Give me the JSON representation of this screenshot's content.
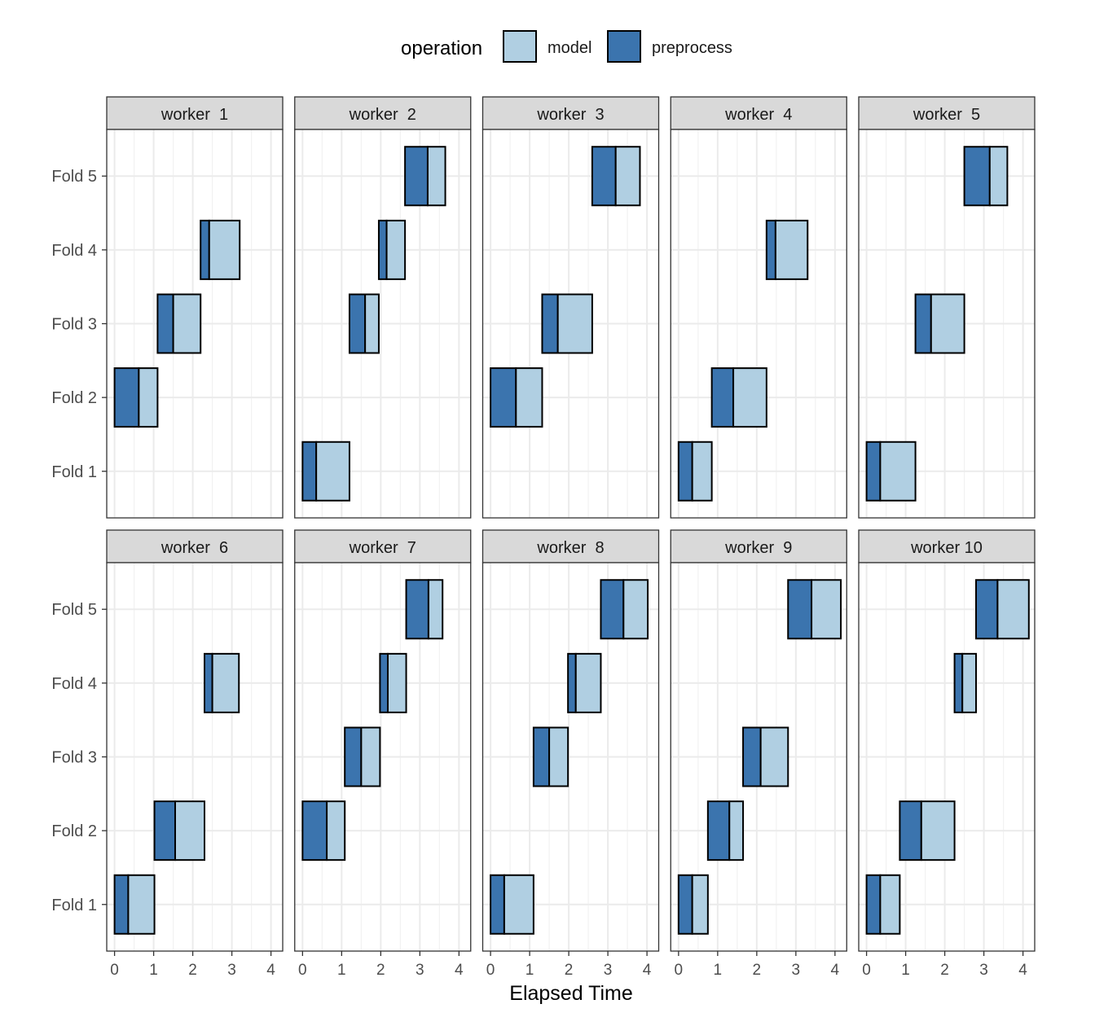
{
  "chart_data": {
    "type": "bar",
    "subtype": "faceted-gantt",
    "xlabel": "Elapsed Time",
    "xlim": [
      -0.2,
      4.3
    ],
    "x_ticks": [
      "0",
      "1",
      "2",
      "3",
      "4"
    ],
    "y_categories": [
      "Fold 1",
      "Fold 2",
      "Fold 3",
      "Fold 4",
      "Fold 5"
    ],
    "legend": {
      "title": "operation",
      "position": "top",
      "entries": [
        {
          "key": "model",
          "label": "model",
          "color": "#b0cfe2"
        },
        {
          "key": "preprocess",
          "label": "preprocess",
          "color": "#3b74ae"
        }
      ]
    },
    "grid": true,
    "facets": [
      {
        "label": "worker  1",
        "tasks": [
          {
            "fold": "Fold 2",
            "start": 0.0,
            "preprocess_end": 0.62,
            "end": 1.1
          },
          {
            "fold": "Fold 3",
            "start": 1.1,
            "preprocess_end": 1.5,
            "end": 2.2
          },
          {
            "fold": "Fold 4",
            "start": 2.2,
            "preprocess_end": 2.42,
            "end": 3.2
          }
        ]
      },
      {
        "label": "worker  2",
        "tasks": [
          {
            "fold": "Fold 1",
            "start": 0.0,
            "preprocess_end": 0.35,
            "end": 1.2
          },
          {
            "fold": "Fold 3",
            "start": 1.2,
            "preprocess_end": 1.6,
            "end": 1.95
          },
          {
            "fold": "Fold 4",
            "start": 1.95,
            "preprocess_end": 2.15,
            "end": 2.62
          },
          {
            "fold": "Fold 5",
            "start": 2.62,
            "preprocess_end": 3.2,
            "end": 3.65
          }
        ]
      },
      {
        "label": "worker  3",
        "tasks": [
          {
            "fold": "Fold 2",
            "start": 0.0,
            "preprocess_end": 0.65,
            "end": 1.32
          },
          {
            "fold": "Fold 3",
            "start": 1.32,
            "preprocess_end": 1.72,
            "end": 2.6
          },
          {
            "fold": "Fold 5",
            "start": 2.6,
            "preprocess_end": 3.2,
            "end": 3.82
          }
        ]
      },
      {
        "label": "worker  4",
        "tasks": [
          {
            "fold": "Fold 1",
            "start": 0.0,
            "preprocess_end": 0.35,
            "end": 0.85
          },
          {
            "fold": "Fold 2",
            "start": 0.85,
            "preprocess_end": 1.4,
            "end": 2.25
          },
          {
            "fold": "Fold 4",
            "start": 2.25,
            "preprocess_end": 2.48,
            "end": 3.3
          }
        ]
      },
      {
        "label": "worker  5",
        "tasks": [
          {
            "fold": "Fold 1",
            "start": 0.0,
            "preprocess_end": 0.35,
            "end": 1.25
          },
          {
            "fold": "Fold 3",
            "start": 1.25,
            "preprocess_end": 1.65,
            "end": 2.5
          },
          {
            "fold": "Fold 5",
            "start": 2.5,
            "preprocess_end": 3.15,
            "end": 3.6
          }
        ]
      },
      {
        "label": "worker  6",
        "tasks": [
          {
            "fold": "Fold 1",
            "start": 0.0,
            "preprocess_end": 0.35,
            "end": 1.02
          },
          {
            "fold": "Fold 2",
            "start": 1.02,
            "preprocess_end": 1.55,
            "end": 2.3
          },
          {
            "fold": "Fold 4",
            "start": 2.3,
            "preprocess_end": 2.5,
            "end": 3.18
          }
        ]
      },
      {
        "label": "worker  7",
        "tasks": [
          {
            "fold": "Fold 2",
            "start": 0.0,
            "preprocess_end": 0.62,
            "end": 1.08
          },
          {
            "fold": "Fold 3",
            "start": 1.08,
            "preprocess_end": 1.5,
            "end": 1.98
          },
          {
            "fold": "Fold 4",
            "start": 1.98,
            "preprocess_end": 2.18,
            "end": 2.65
          },
          {
            "fold": "Fold 5",
            "start": 2.65,
            "preprocess_end": 3.22,
            "end": 3.58
          }
        ]
      },
      {
        "label": "worker  8",
        "tasks": [
          {
            "fold": "Fold 1",
            "start": 0.0,
            "preprocess_end": 0.35,
            "end": 1.1
          },
          {
            "fold": "Fold 3",
            "start": 1.1,
            "preprocess_end": 1.5,
            "end": 1.98
          },
          {
            "fold": "Fold 4",
            "start": 1.98,
            "preprocess_end": 2.18,
            "end": 2.82
          },
          {
            "fold": "Fold 5",
            "start": 2.82,
            "preprocess_end": 3.4,
            "end": 4.02
          }
        ]
      },
      {
        "label": "worker  9",
        "tasks": [
          {
            "fold": "Fold 1",
            "start": 0.0,
            "preprocess_end": 0.35,
            "end": 0.75
          },
          {
            "fold": "Fold 2",
            "start": 0.75,
            "preprocess_end": 1.3,
            "end": 1.65
          },
          {
            "fold": "Fold 3",
            "start": 1.65,
            "preprocess_end": 2.1,
            "end": 2.8
          },
          {
            "fold": "Fold 5",
            "start": 2.8,
            "preprocess_end": 3.4,
            "end": 4.15
          }
        ]
      },
      {
        "label": "worker 10",
        "tasks": [
          {
            "fold": "Fold 1",
            "start": 0.0,
            "preprocess_end": 0.35,
            "end": 0.85
          },
          {
            "fold": "Fold 2",
            "start": 0.85,
            "preprocess_end": 1.4,
            "end": 2.25
          },
          {
            "fold": "Fold 4",
            "start": 2.25,
            "preprocess_end": 2.45,
            "end": 2.8
          },
          {
            "fold": "Fold 5",
            "start": 2.8,
            "preprocess_end": 3.35,
            "end": 4.15
          }
        ]
      }
    ]
  }
}
